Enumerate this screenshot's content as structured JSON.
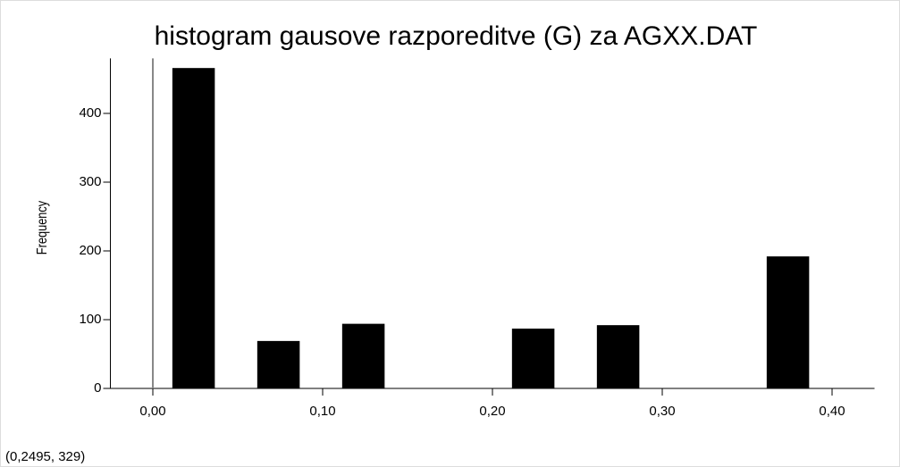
{
  "chart_data": {
    "type": "histogram",
    "title": "histogram gausove razporeditve (G) za AGXX.DAT",
    "y_label": "Frequency",
    "status": "(0,2495, 329)",
    "bins": [
      0,
      0.05,
      0.1,
      0.15,
      0.2,
      0.25,
      0.3,
      0.35,
      0.4
    ],
    "values": [
      466,
      69,
      94,
      0,
      87,
      92,
      0,
      192
    ],
    "color": "#000000",
    "xlim": [
      -0.025,
      0.425
    ],
    "xticks": [
      {
        "value": 0,
        "label": "0,00"
      },
      {
        "value": 0.1,
        "label": "0,10"
      },
      {
        "value": 0.2,
        "label": "0,20"
      },
      {
        "value": 0.3,
        "label": "0,30"
      },
      {
        "value": 0.4,
        "label": "0,40"
      }
    ],
    "ylim": [
      0,
      480
    ],
    "yticks": [
      0,
      100,
      200,
      300,
      400
    ],
    "grid": false
  }
}
